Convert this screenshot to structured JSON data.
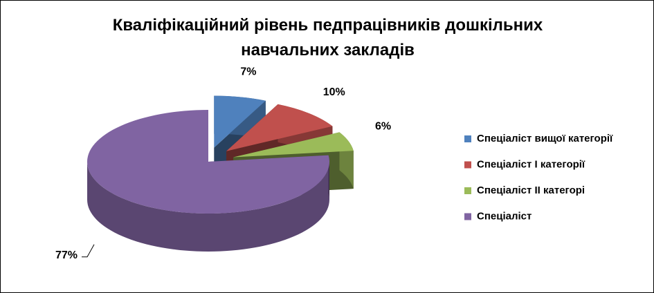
{
  "chart_data": {
    "type": "pie",
    "title": "Кваліфікаційний рівень педпрацівників дошкільних навчальних закладів",
    "categories": [
      "Спеціаліст вищої категорії",
      "Спеціаліст І категорії",
      "Спеціаліст ІІ категорі",
      "Спеціаліст"
    ],
    "values": [
      7,
      10,
      6,
      77
    ],
    "value_labels": [
      "7%",
      "10%",
      "6%",
      "77%"
    ],
    "colors": [
      "#4f81bd",
      "#c0504d",
      "#9bbb59",
      "#8064a2"
    ],
    "legend": "right"
  }
}
